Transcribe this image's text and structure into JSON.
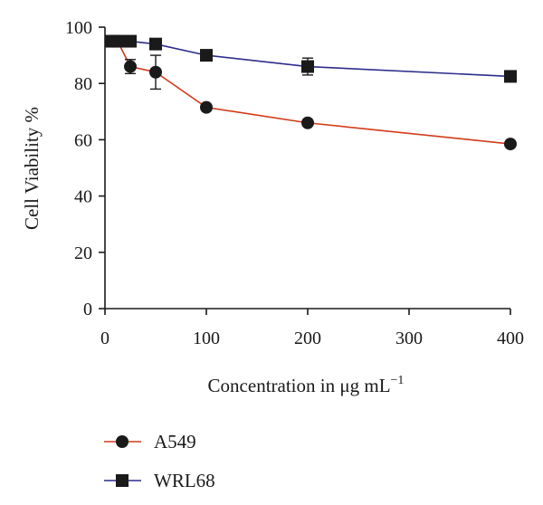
{
  "chart_data": {
    "type": "line",
    "title": "",
    "xlabel": "Concentration in μg mL",
    "xlabel_superscript": "−1",
    "ylabel": "Cell Viability %",
    "xlim": [
      0,
      400
    ],
    "ylim": [
      0,
      100
    ],
    "xticks": [
      0,
      100,
      200,
      300,
      400
    ],
    "yticks": [
      0,
      20,
      40,
      60,
      80,
      100
    ],
    "grid": false,
    "legend_position": "bottom-left",
    "series": [
      {
        "name": "A549",
        "color": "#d43a1a",
        "marker": "circle",
        "x": [
          6.25,
          12.5,
          25,
          50,
          100,
          200,
          400
        ],
        "y": [
          95,
          95,
          86,
          84,
          71.5,
          66,
          58.5
        ],
        "error": [
          0,
          0,
          2.5,
          6,
          0,
          0,
          0
        ]
      },
      {
        "name": "WRL68",
        "color": "#2d2d8c",
        "marker": "square",
        "x": [
          6.25,
          12.5,
          25,
          50,
          100,
          200,
          400
        ],
        "y": [
          95,
          95,
          95,
          94,
          90,
          86,
          82.5
        ],
        "error": [
          0,
          0,
          0,
          0,
          0,
          3,
          0
        ]
      }
    ]
  }
}
